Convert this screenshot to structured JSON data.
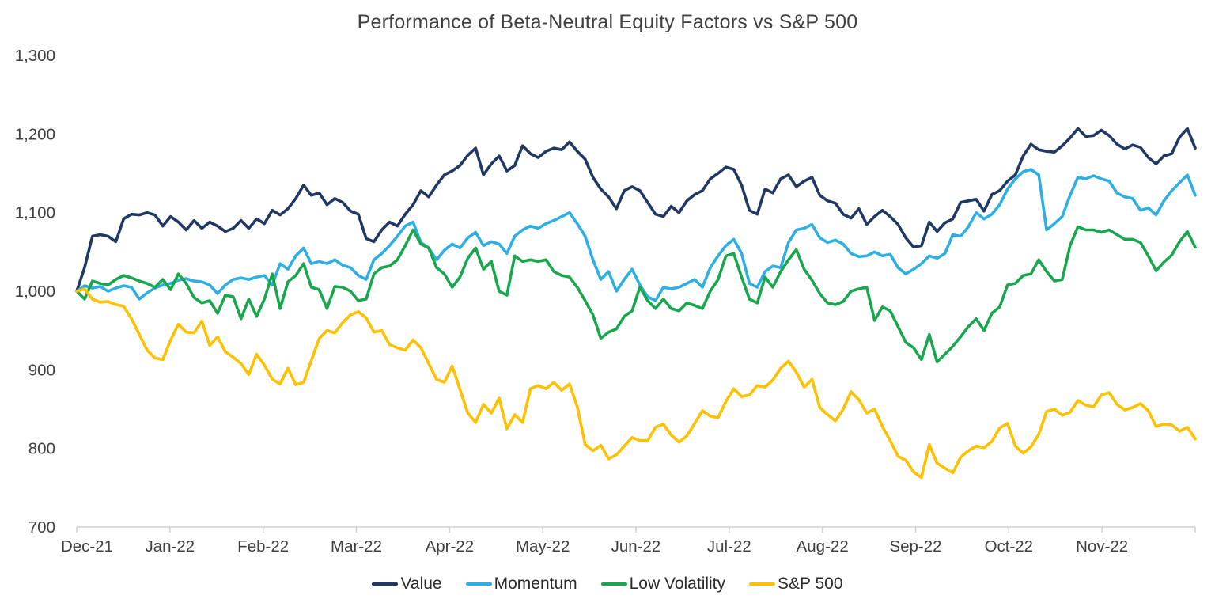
{
  "title": "Performance of Beta-Neutral Equity Factors vs S&P 500",
  "legend": {
    "items": [
      {
        "label": "Value",
        "color": "#1F3864"
      },
      {
        "label": "Momentum",
        "color": "#2EAFE4"
      },
      {
        "label": "Low Volatility",
        "color": "#18A74C"
      },
      {
        "label": "S&P 500",
        "color": "#FFC000"
      }
    ]
  },
  "chart_data": {
    "type": "line",
    "title": "Performance of Beta-Neutral Equity Factors vs S&P 500",
    "xlabel": "",
    "ylabel": "",
    "ylim": [
      700,
      1300
    ],
    "grid": false,
    "legend_position": "bottom",
    "start_value": 1000,
    "y_ticks": [
      {
        "label": "1,300",
        "value": 1300
      },
      {
        "label": "1,200",
        "value": 1200
      },
      {
        "label": "1,100",
        "value": 1100
      },
      {
        "label": "1,000",
        "value": 1000
      },
      {
        "label": "900",
        "value": 900
      },
      {
        "label": "800",
        "value": 800
      },
      {
        "label": "700",
        "value": 700
      }
    ],
    "x_tick_labels": [
      "Dec-21",
      "Jan-22",
      "Feb-22",
      "Mar-22",
      "Apr-22",
      "May-22",
      "Jun-22",
      "Jul-22",
      "Aug-22",
      "Sep-22",
      "Oct-22",
      "Nov-22"
    ],
    "points_per_month": 12,
    "series": [
      {
        "name": "Value",
        "color": "#1F3864",
        "values": [
          1000,
          1030,
          1070,
          1072,
          1070,
          1063,
          1092,
          1098,
          1097,
          1100,
          1097,
          1083,
          1095,
          1088,
          1078,
          1090,
          1080,
          1088,
          1083,
          1076,
          1080,
          1090,
          1080,
          1092,
          1086,
          1103,
          1097,
          1105,
          1118,
          1135,
          1122,
          1125,
          1110,
          1118,
          1113,
          1102,
          1098,
          1067,
          1063,
          1078,
          1088,
          1083,
          1098,
          1110,
          1128,
          1120,
          1135,
          1148,
          1153,
          1160,
          1173,
          1182,
          1148,
          1162,
          1172,
          1153,
          1160,
          1185,
          1175,
          1170,
          1178,
          1182,
          1180,
          1190,
          1178,
          1168,
          1145,
          1130,
          1120,
          1105,
          1128,
          1133,
          1128,
          1113,
          1098,
          1095,
          1108,
          1100,
          1115,
          1123,
          1128,
          1143,
          1150,
          1158,
          1155,
          1135,
          1103,
          1098,
          1130,
          1125,
          1143,
          1148,
          1133,
          1140,
          1145,
          1122,
          1115,
          1112,
          1098,
          1093,
          1105,
          1085,
          1095,
          1103,
          1095,
          1085,
          1068,
          1056,
          1058,
          1088,
          1076,
          1087,
          1092,
          1113,
          1115,
          1117,
          1102,
          1123,
          1128,
          1140,
          1148,
          1172,
          1187,
          1180,
          1178,
          1177,
          1185,
          1195,
          1207,
          1197,
          1198,
          1205,
          1198,
          1187,
          1181,
          1186,
          1183,
          1170,
          1162,
          1172,
          1175,
          1196,
          1207,
          1182
        ]
      },
      {
        "name": "Momentum",
        "color": "#2EAFE4",
        "values": [
          1000,
          1007,
          1004,
          1006,
          1000,
          1004,
          1007,
          1005,
          990,
          998,
          1004,
          1008,
          1010,
          1014,
          1016,
          1013,
          1012,
          1008,
          997,
          1008,
          1015,
          1017,
          1015,
          1018,
          1020,
          1008,
          1035,
          1028,
          1045,
          1055,
          1035,
          1038,
          1035,
          1040,
          1033,
          1030,
          1020,
          1015,
          1040,
          1048,
          1058,
          1070,
          1083,
          1088,
          1062,
          1055,
          1040,
          1052,
          1060,
          1055,
          1068,
          1075,
          1058,
          1063,
          1060,
          1048,
          1070,
          1078,
          1083,
          1080,
          1086,
          1090,
          1095,
          1100,
          1086,
          1070,
          1040,
          1015,
          1025,
          1000,
          1015,
          1028,
          1008,
          993,
          988,
          1005,
          1003,
          1005,
          1010,
          1015,
          1005,
          1030,
          1045,
          1058,
          1066,
          1048,
          1010,
          1005,
          1025,
          1032,
          1030,
          1062,
          1078,
          1080,
          1085,
          1068,
          1062,
          1065,
          1060,
          1048,
          1044,
          1045,
          1050,
          1045,
          1047,
          1030,
          1022,
          1028,
          1035,
          1045,
          1042,
          1048,
          1072,
          1070,
          1082,
          1100,
          1092,
          1098,
          1110,
          1130,
          1143,
          1152,
          1155,
          1148,
          1078,
          1086,
          1095,
          1122,
          1145,
          1143,
          1147,
          1143,
          1140,
          1125,
          1120,
          1118,
          1103,
          1106,
          1097,
          1115,
          1128,
          1138,
          1148,
          1122
        ]
      },
      {
        "name": "Low Volatility",
        "color": "#18A74C",
        "values": [
          1000,
          990,
          1013,
          1010,
          1008,
          1015,
          1020,
          1017,
          1013,
          1010,
          1005,
          1015,
          1002,
          1022,
          1010,
          992,
          985,
          988,
          972,
          995,
          993,
          965,
          990,
          968,
          990,
          1022,
          978,
          1012,
          1020,
          1035,
          1005,
          1002,
          978,
          1006,
          1005,
          1000,
          988,
          990,
          1022,
          1030,
          1032,
          1040,
          1058,
          1078,
          1060,
          1055,
          1030,
          1022,
          1005,
          1018,
          1042,
          1055,
          1028,
          1038,
          1000,
          995,
          1045,
          1038,
          1040,
          1038,
          1040,
          1025,
          1020,
          1018,
          1005,
          988,
          970,
          940,
          948,
          952,
          968,
          975,
          1005,
          988,
          978,
          990,
          978,
          975,
          985,
          982,
          978,
          1000,
          1015,
          1045,
          1048,
          1018,
          990,
          985,
          1018,
          1005,
          1025,
          1040,
          1053,
          1028,
          1014,
          997,
          985,
          983,
          987,
          1000,
          1003,
          1005,
          963,
          980,
          975,
          955,
          935,
          928,
          913,
          945,
          910,
          920,
          930,
          942,
          955,
          965,
          950,
          972,
          980,
          1008,
          1010,
          1020,
          1022,
          1040,
          1025,
          1013,
          1015,
          1058,
          1082,
          1078,
          1078,
          1075,
          1078,
          1072,
          1066,
          1066,
          1062,
          1045,
          1026,
          1037,
          1046,
          1063,
          1076,
          1056
        ]
      },
      {
        "name": "S&P 500",
        "color": "#FFC000",
        "values": [
          1000,
          1003,
          990,
          986,
          987,
          983,
          981,
          965,
          945,
          925,
          915,
          913,
          938,
          958,
          948,
          947,
          962,
          931,
          942,
          923,
          916,
          908,
          894,
          920,
          906,
          888,
          882,
          902,
          881,
          884,
          912,
          940,
          950,
          947,
          960,
          970,
          974,
          966,
          948,
          950,
          932,
          928,
          925,
          938,
          928,
          908,
          888,
          884,
          905,
          875,
          845,
          833,
          856,
          845,
          864,
          825,
          843,
          833,
          876,
          880,
          876,
          884,
          874,
          882,
          853,
          805,
          797,
          804,
          787,
          792,
          803,
          814,
          810,
          810,
          827,
          831,
          817,
          808,
          816,
          832,
          848,
          841,
          839,
          860,
          876,
          866,
          868,
          880,
          878,
          887,
          902,
          911,
          897,
          878,
          888,
          852,
          843,
          835,
          850,
          872,
          862,
          845,
          850,
          828,
          810,
          790,
          785,
          770,
          763,
          805,
          781,
          775,
          769,
          789,
          797,
          803,
          801,
          809,
          826,
          832,
          803,
          794,
          802,
          818,
          847,
          850,
          842,
          846,
          861,
          855,
          853,
          868,
          871,
          856,
          849,
          852,
          857,
          848,
          828,
          831,
          830,
          822,
          827,
          812
        ]
      }
    ]
  }
}
